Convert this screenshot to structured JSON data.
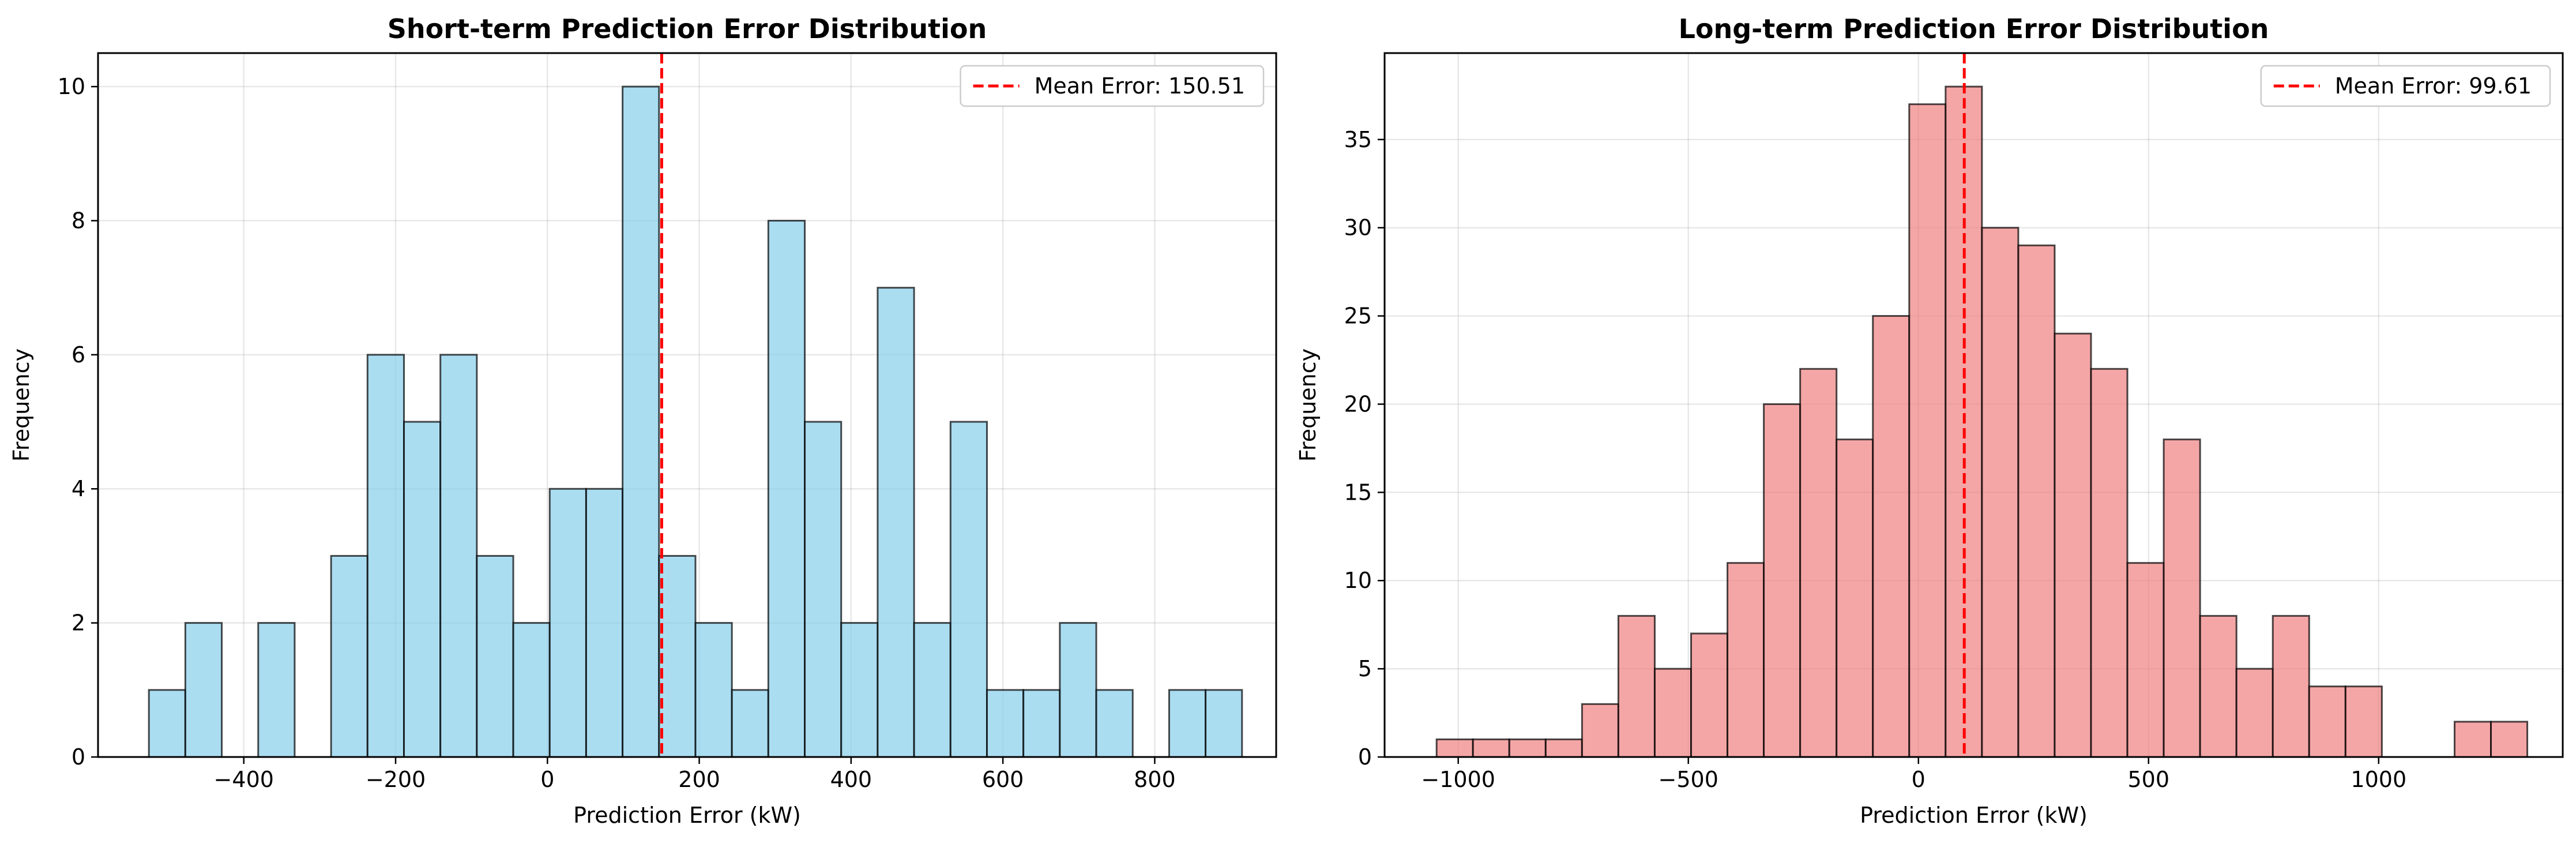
{
  "chart_data": [
    {
      "type": "bar",
      "title": "Short-term Prediction Error Distribution",
      "xlabel": "Prediction Error (kW)",
      "ylabel": "Frequency",
      "xlim": [
        -592,
        960
      ],
      "ylim": [
        0,
        10.5
      ],
      "xticks": [
        -400,
        -200,
        0,
        200,
        400,
        600,
        800
      ],
      "yticks": [
        0,
        2,
        4,
        6,
        8,
        10
      ],
      "bin_edges": [
        -525,
        -477,
        -429,
        -381,
        -333,
        -285,
        -237,
        -189,
        -141,
        -93,
        -45,
        3,
        51,
        99,
        147,
        195,
        243,
        291,
        339,
        387,
        435,
        483,
        531,
        579,
        627,
        675,
        723,
        771,
        819,
        867,
        915
      ],
      "values": [
        1,
        2,
        0,
        2,
        0,
        3,
        6,
        5,
        6,
        3,
        2,
        4,
        4,
        10,
        3,
        2,
        1,
        8,
        5,
        2,
        7,
        2,
        5,
        1,
        1,
        2,
        1,
        0,
        1,
        1
      ],
      "bar_color": "#87CEEB",
      "mean_line": {
        "x": 150.51,
        "color": "#ff0000",
        "label": "Mean Error: 150.51"
      },
      "legend": "top-right",
      "grid": true
    },
    {
      "type": "bar",
      "title": "Long-term Prediction Error Distribution",
      "xlabel": "Prediction Error (kW)",
      "ylabel": "Frequency",
      "xlim": [
        -1160,
        1400
      ],
      "ylim": [
        0,
        39.9
      ],
      "xticks": [
        -1000,
        -500,
        0,
        500,
        1000
      ],
      "yticks": [
        0,
        5,
        10,
        15,
        20,
        25,
        30,
        35
      ],
      "bin_edges": [
        -1047,
        -968,
        -889,
        -810,
        -731,
        -652,
        -573,
        -494,
        -415,
        -336,
        -257,
        -178,
        -99,
        -20,
        59,
        138,
        217,
        296,
        375,
        454,
        533,
        612,
        691,
        770,
        849,
        928,
        1007,
        1086,
        1165,
        1244,
        1323
      ],
      "values": [
        1,
        1,
        1,
        1,
        3,
        8,
        5,
        7,
        11,
        20,
        22,
        18,
        25,
        37,
        38,
        30,
        29,
        24,
        22,
        11,
        18,
        8,
        5,
        8,
        4,
        4,
        0,
        0,
        2,
        2
      ],
      "bar_color": "#F08080",
      "mean_line": {
        "x": 99.61,
        "color": "#ff0000",
        "label": "Mean Error: 99.61"
      },
      "legend": "top-right",
      "grid": true
    }
  ]
}
